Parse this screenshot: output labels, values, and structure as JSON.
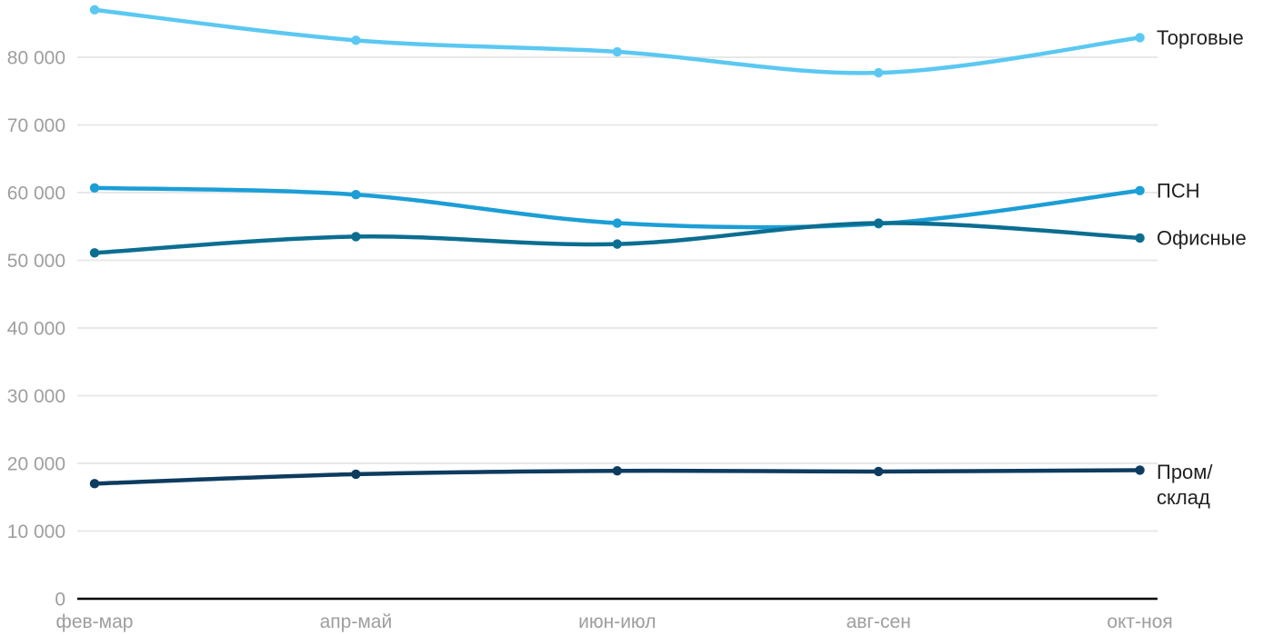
{
  "chart_data": {
    "type": "line",
    "title": "",
    "xlabel": "",
    "ylabel": "",
    "x": [
      "фев-мар",
      "апр-май",
      "июн-июл",
      "авг-сен",
      "окт-ноя"
    ],
    "series": [
      {
        "name": "Торговые",
        "label_lines": [
          "Торговые"
        ],
        "color": "#5BC8F2",
        "values": [
          87000,
          82500,
          80800,
          77700,
          82900
        ]
      },
      {
        "name": "ПСН",
        "label_lines": [
          "ПСН"
        ],
        "color": "#1C9ED6",
        "values": [
          60700,
          59700,
          55500,
          55400,
          60300
        ]
      },
      {
        "name": "Офисные",
        "label_lines": [
          "Офисные"
        ],
        "color": "#0B6E91",
        "values": [
          51100,
          53500,
          52400,
          55500,
          53300
        ]
      },
      {
        "name": "Пром/склад",
        "label_lines": [
          "Пром/",
          "склад"
        ],
        "color": "#0E3C60",
        "values": [
          17000,
          18400,
          18900,
          18800,
          19000
        ]
      }
    ],
    "ylim": [
      0,
      88400
    ],
    "yticks": [
      0,
      10000,
      20000,
      30000,
      40000,
      50000,
      60000,
      70000,
      80000
    ],
    "ytick_labels": [
      "0",
      "10 000",
      "20 000",
      "30 000",
      "40 000",
      "50 000",
      "60 000",
      "70 000",
      "80 000"
    ],
    "grid": true,
    "legend_position": "line-end-labels-right"
  },
  "styles": {
    "background": "#FFFFFF",
    "grid_color": "#E8E8E8",
    "axis_color": "#000000",
    "tick_label_color": "#9E9E9E",
    "series_label_color": "#212121"
  }
}
